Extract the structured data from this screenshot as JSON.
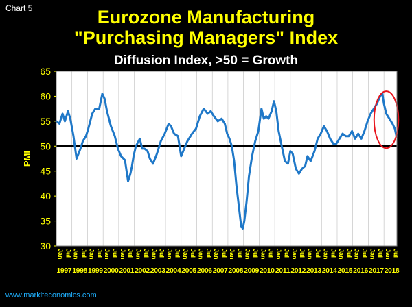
{
  "header": {
    "chart_label": "Chart 5",
    "title_line1": "Eurozone Manufacturing",
    "title_line2": "\"Purchasing Managers\" Index",
    "subtitle": "Diffusion Index, >50 = Growth"
  },
  "footer": {
    "source": "www.markiteconomics.com"
  },
  "colors": {
    "background": "#000000",
    "plot_bg": "#ffffff",
    "line": "#1f78c8",
    "title": "#ffff00",
    "axis_text": "#ffff00",
    "threshold": "#000000",
    "highlight": "#e8141c",
    "gridline": "#bcbcbc"
  },
  "chart_data": {
    "type": "line",
    "title": "Eurozone Manufacturing \"Purchasing Managers\" Index",
    "subtitle": "Diffusion Index, >50 = Growth",
    "xlabel": "",
    "ylabel": "PMI",
    "ylim": [
      30,
      65
    ],
    "yticks": [
      30,
      35,
      40,
      45,
      50,
      55,
      60,
      65
    ],
    "grid": true,
    "x_start": 1997.0,
    "x_end": 2018.83,
    "year_labels": [
      "1997",
      "1998",
      "1999",
      "2000",
      "2001",
      "2002",
      "2003",
      "2004",
      "2005",
      "2006",
      "2007",
      "2008",
      "2009",
      "2010",
      "2011",
      "2012",
      "2013",
      "2014",
      "2015",
      "2016",
      "2017",
      "2018"
    ],
    "month_tick_labels": [
      "Jan",
      "Jul"
    ],
    "reference_line": {
      "value": 50,
      "label": ""
    },
    "highlight": {
      "shape": "ellipse",
      "from": 2017.5,
      "to": 2018.8
    },
    "series": [
      {
        "name": "Eurozone Manufacturing PMI",
        "x": [
          1997.0,
          1997.2,
          1997.4,
          1997.55,
          1997.75,
          1997.9,
          1998.1,
          1998.3,
          1998.55,
          1998.7,
          1998.9,
          1999.05,
          1999.3,
          1999.5,
          1999.75,
          1999.95,
          2000.1,
          2000.25,
          2000.5,
          2000.75,
          2000.95,
          2001.15,
          2001.4,
          2001.6,
          2001.75,
          2001.85,
          2001.95,
          2002.1,
          2002.35,
          2002.5,
          2002.65,
          2002.85,
          2003.0,
          2003.2,
          2003.45,
          2003.7,
          2003.95,
          2004.2,
          2004.35,
          2004.55,
          2004.8,
          2005.0,
          2005.2,
          2005.4,
          2005.7,
          2005.95,
          2006.2,
          2006.45,
          2006.7,
          2006.9,
          2007.1,
          2007.35,
          2007.6,
          2007.8,
          2007.95,
          2008.1,
          2008.25,
          2008.4,
          2008.55,
          2008.7,
          2008.85,
          2008.95,
          2009.05,
          2009.2,
          2009.35,
          2009.55,
          2009.75,
          2009.95,
          2010.15,
          2010.3,
          2010.45,
          2010.6,
          2010.8,
          2010.95,
          2011.1,
          2011.25,
          2011.45,
          2011.65,
          2011.85,
          2012.0,
          2012.15,
          2012.35,
          2012.55,
          2012.75,
          2012.95,
          2013.1,
          2013.3,
          2013.55,
          2013.75,
          2013.95,
          2014.15,
          2014.35,
          2014.55,
          2014.75,
          2014.95,
          2015.15,
          2015.35,
          2015.55,
          2015.75,
          2015.95,
          2016.15,
          2016.35,
          2016.55,
          2016.75,
          2016.95,
          2017.15,
          2017.35,
          2017.55,
          2017.75,
          2017.9,
          2018.0,
          2018.15,
          2018.35,
          2018.55,
          2018.7,
          2018.8
        ],
        "values": [
          55,
          54.5,
          56.5,
          55,
          57,
          55.5,
          52,
          47.5,
          49.5,
          51,
          52,
          53.5,
          56.5,
          57.5,
          57.5,
          60.5,
          59.5,
          57,
          54,
          52,
          49.5,
          48,
          47.2,
          43,
          44.5,
          46,
          48,
          50,
          51.5,
          49.5,
          49.5,
          49,
          47.5,
          46.5,
          48.5,
          51,
          52.5,
          54.5,
          54,
          52.5,
          52,
          48,
          49.5,
          51,
          52.5,
          53.5,
          56,
          57.5,
          56.5,
          57,
          56,
          55,
          55.5,
          54.5,
          52.5,
          51.5,
          50,
          47,
          42,
          38,
          34,
          33.5,
          35,
          39,
          44,
          48,
          51,
          53,
          57.5,
          55.5,
          56,
          55.5,
          57,
          59,
          57,
          53,
          50,
          47,
          46.5,
          49,
          48.5,
          45.5,
          44.5,
          45.5,
          46,
          48,
          47,
          49,
          51.5,
          52.5,
          54,
          53,
          51.5,
          50.5,
          50.5,
          51.5,
          52.5,
          52,
          52,
          53,
          51.5,
          52.5,
          51.5,
          53,
          55,
          56.5,
          57.5,
          58.5,
          60,
          60.5,
          58.5,
          56.5,
          55.5,
          54.5,
          53.5,
          52
        ]
      }
    ]
  }
}
